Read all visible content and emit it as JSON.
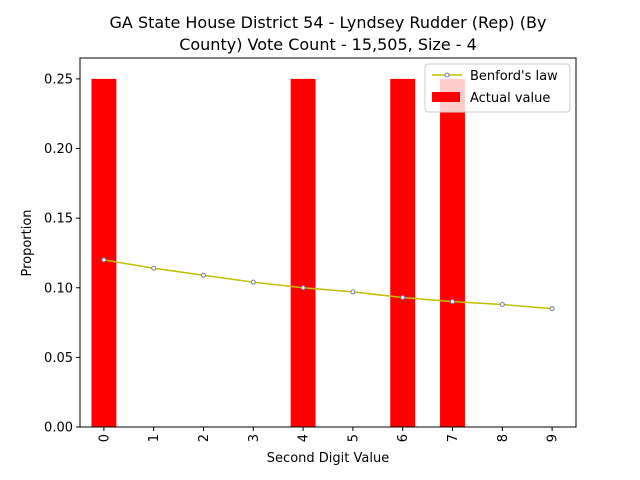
{
  "chart_data": {
    "type": "bar",
    "title_lines": [
      "GA State House District 54 - Lyndsey Rudder (Rep) (By",
      "County) Vote Count - 15,505, Size - 4"
    ],
    "xlabel": "Second Digit Value",
    "ylabel": "Proportion",
    "categories": [
      "0",
      "1",
      "2",
      "3",
      "4",
      "5",
      "6",
      "7",
      "8",
      "9"
    ],
    "ylim": [
      0,
      0.265
    ],
    "y_ticks": [
      "0.00",
      "0.05",
      "0.10",
      "0.15",
      "0.20",
      "0.25"
    ],
    "legend_position": "top-right",
    "series": [
      {
        "name": "Actual value",
        "kind": "bar",
        "color": "#ff0000",
        "values": [
          0.25,
          0,
          0,
          0,
          0.25,
          0,
          0.25,
          0.25,
          0,
          0
        ]
      },
      {
        "name": "Benford's law",
        "kind": "line",
        "color": "#bfbf00",
        "marker_edge_color": "#7a7a9a",
        "values": [
          0.12,
          0.114,
          0.109,
          0.104,
          0.1,
          0.097,
          0.093,
          0.09,
          0.088,
          0.085
        ]
      }
    ]
  }
}
